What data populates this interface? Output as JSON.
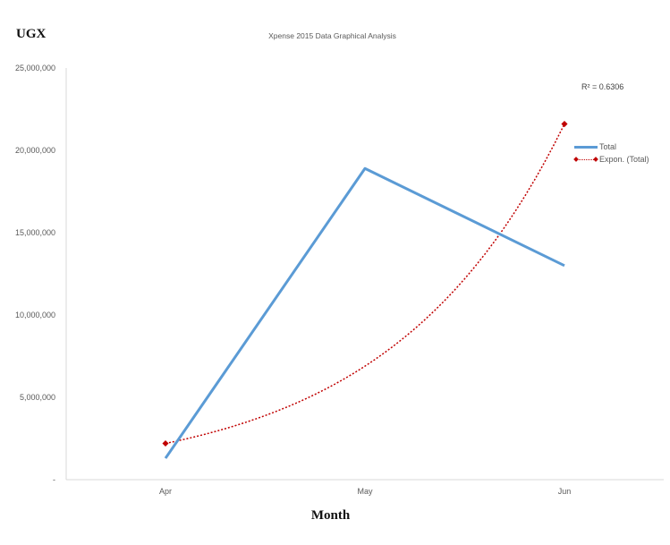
{
  "chart_data": {
    "type": "line",
    "title": "Xpense 2015 Data Graphical Analysis",
    "xlabel": "Month",
    "ylabel": "UGX",
    "categories": [
      "Apr",
      "May",
      "Jun"
    ],
    "ylim": [
      0,
      25000000
    ],
    "y_ticks": [
      0,
      5000000,
      10000000,
      15000000,
      20000000,
      25000000
    ],
    "y_tick_labels": [
      "-",
      "5,000,000",
      "10,000,000",
      "15,000,000",
      "20,000,000",
      "25,000,000"
    ],
    "series": [
      {
        "name": "Total",
        "values": [
          1300000,
          18900000,
          13000000
        ],
        "color": "#5b9bd5",
        "style": "solid"
      },
      {
        "name": "Expon. (Total)",
        "values": [
          2200000,
          6900000,
          21600000
        ],
        "color": "#c00000",
        "style": "dotted",
        "trendline": "exponential"
      }
    ],
    "r_squared_label": "R² = 0.6306",
    "grid": false,
    "legend_position": "right"
  }
}
